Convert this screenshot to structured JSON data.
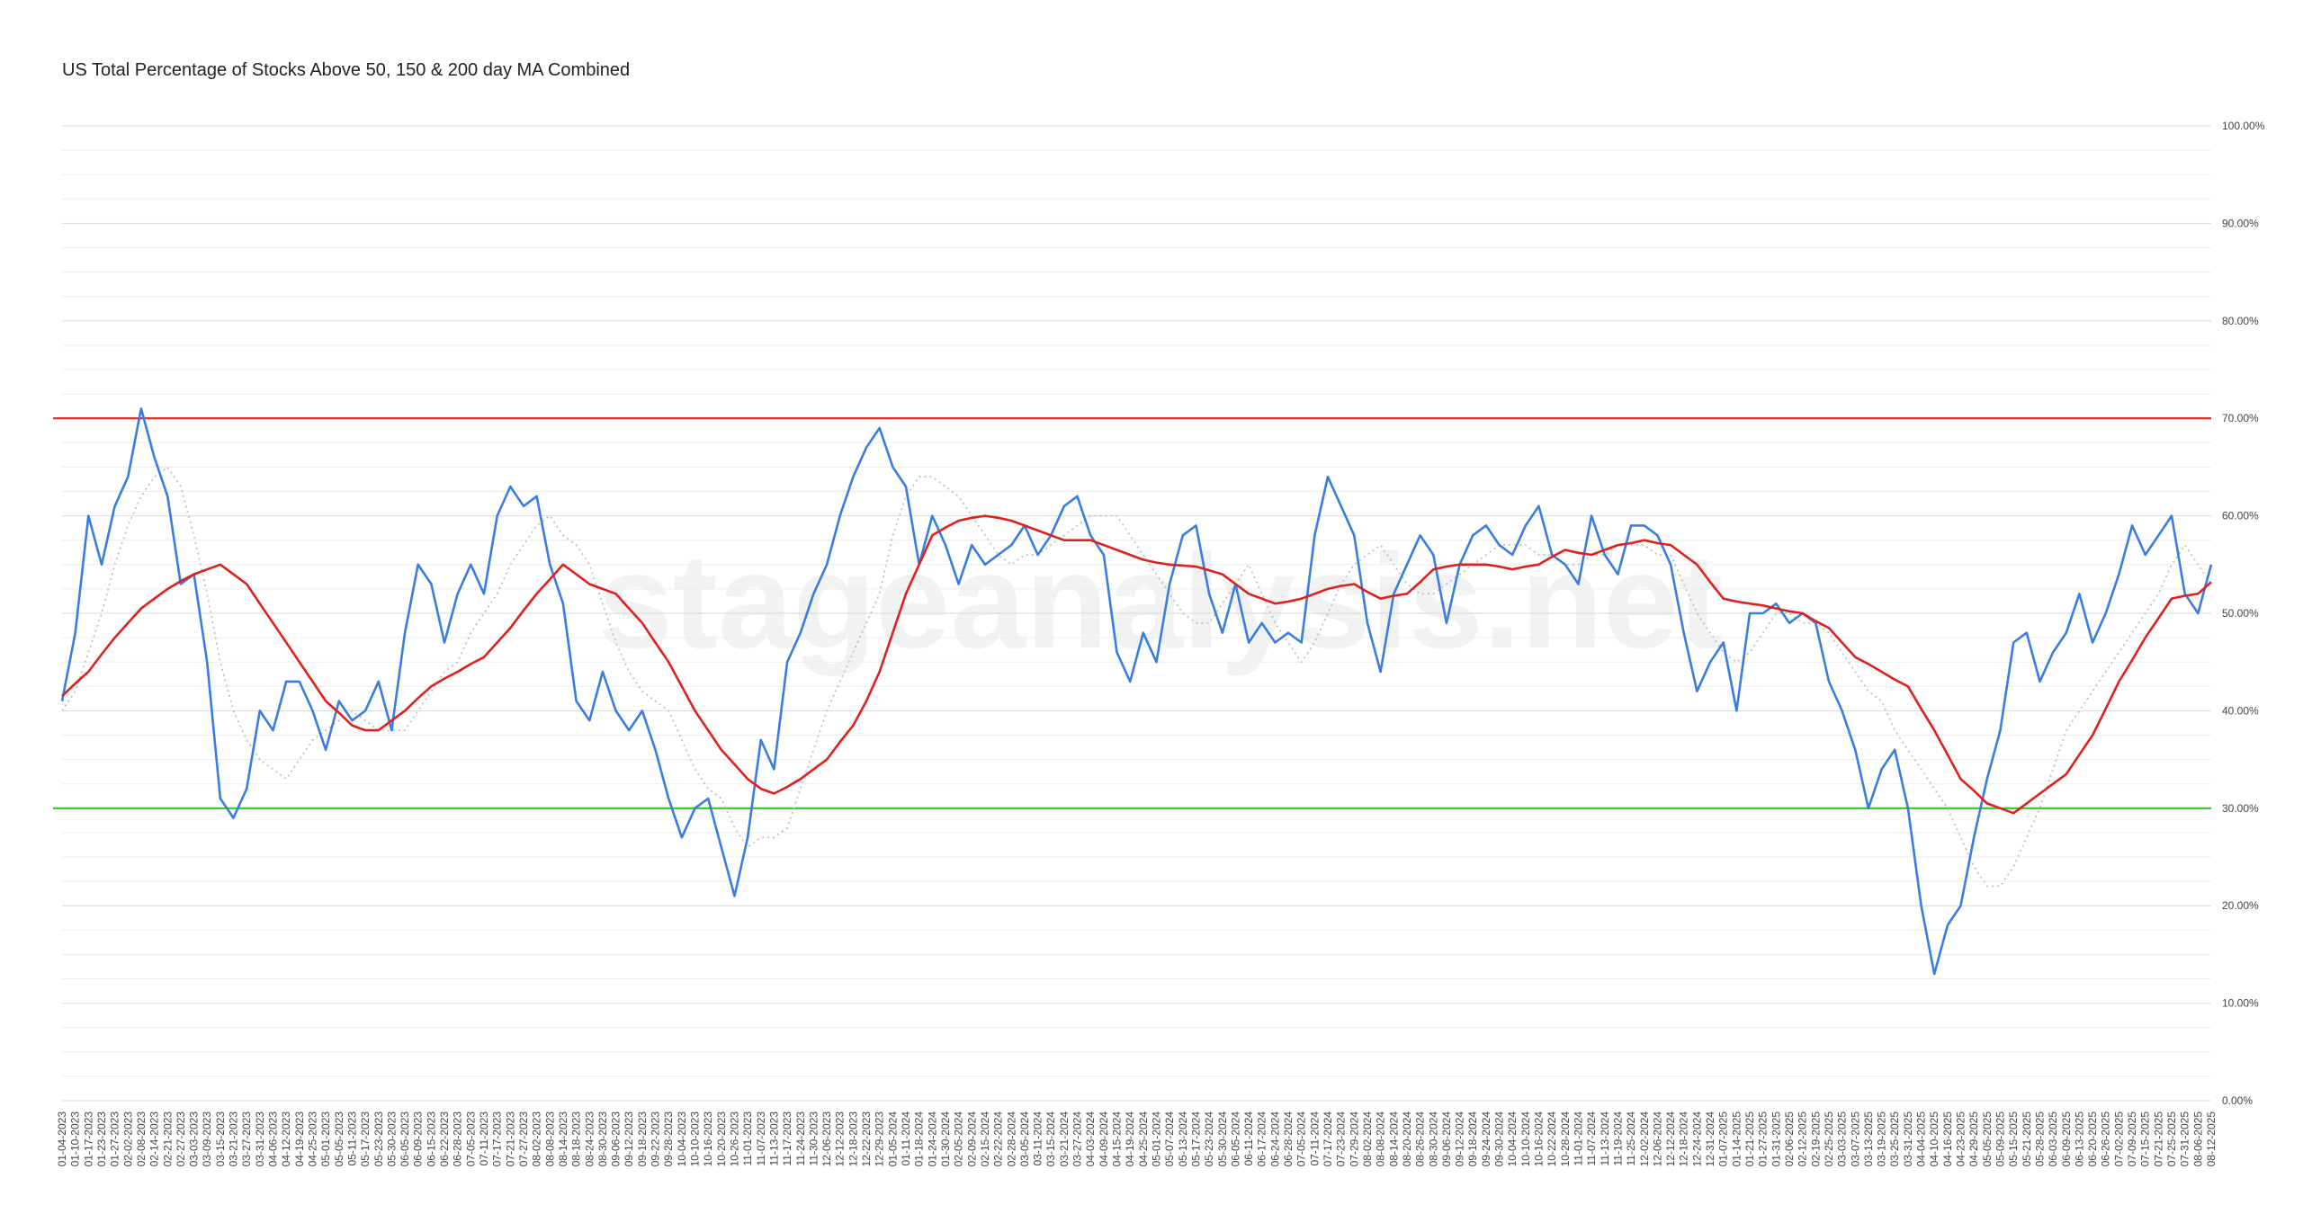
{
  "chart_data": {
    "type": "line",
    "title": "US Total Percentage of Stocks Above 50, 150 & 200 day MA Combined",
    "watermark": "stageanalysis.net",
    "categories": [
      "01-04-2023",
      "01-10-2023",
      "01-17-2023",
      "01-23-2023",
      "01-27-2023",
      "02-02-2023",
      "02-08-2023",
      "02-14-2023",
      "02-21-2023",
      "02-27-2023",
      "03-03-2023",
      "03-09-2023",
      "03-15-2023",
      "03-21-2023",
      "03-27-2023",
      "03-31-2023",
      "04-06-2023",
      "04-12-2023",
      "04-19-2023",
      "04-25-2023",
      "05-01-2023",
      "05-05-2023",
      "05-11-2023",
      "05-17-2023",
      "05-23-2023",
      "05-30-2023",
      "06-05-2023",
      "06-09-2023",
      "06-15-2023",
      "06-22-2023",
      "06-28-2023",
      "07-05-2023",
      "07-11-2023",
      "07-17-2023",
      "07-21-2023",
      "07-27-2023",
      "08-02-2023",
      "08-08-2023",
      "08-14-2023",
      "08-18-2023",
      "08-24-2023",
      "08-30-2023",
      "09-06-2023",
      "09-12-2023",
      "09-18-2023",
      "09-22-2023",
      "09-28-2023",
      "10-04-2023",
      "10-10-2023",
      "10-16-2023",
      "10-20-2023",
      "10-26-2023",
      "11-01-2023",
      "11-07-2023",
      "11-13-2023",
      "11-17-2023",
      "11-24-2023",
      "11-30-2023",
      "12-06-2023",
      "12-12-2023",
      "12-18-2023",
      "12-22-2023",
      "12-29-2023",
      "01-05-2024",
      "01-11-2024",
      "01-18-2024",
      "01-24-2024",
      "01-30-2024",
      "02-05-2024",
      "02-09-2024",
      "02-15-2024",
      "02-22-2024",
      "02-28-2024",
      "03-05-2024",
      "03-11-2024",
      "03-15-2024",
      "03-21-2024",
      "03-27-2024",
      "04-03-2024",
      "04-09-2024",
      "04-15-2024",
      "04-19-2024",
      "04-25-2024",
      "05-01-2024",
      "05-07-2024",
      "05-13-2024",
      "05-17-2024",
      "05-23-2024",
      "05-30-2024",
      "06-05-2024",
      "06-11-2024",
      "06-17-2024",
      "06-24-2024",
      "06-28-2024",
      "07-05-2024",
      "07-11-2024",
      "07-17-2024",
      "07-23-2024",
      "07-29-2024",
      "08-02-2024",
      "08-08-2024",
      "08-14-2024",
      "08-20-2024",
      "08-26-2024",
      "08-30-2024",
      "09-06-2024",
      "09-12-2024",
      "09-18-2024",
      "09-24-2024",
      "09-30-2024",
      "10-04-2024",
      "10-10-2024",
      "10-16-2024",
      "10-22-2024",
      "10-28-2024",
      "11-01-2024",
      "11-07-2024",
      "11-13-2024",
      "11-19-2024",
      "11-25-2024",
      "12-02-2024",
      "12-06-2024",
      "12-12-2024",
      "12-18-2024",
      "12-24-2024",
      "12-31-2024",
      "01-07-2025",
      "01-14-2025",
      "01-21-2025",
      "01-27-2025",
      "01-31-2025",
      "02-06-2025",
      "02-12-2025",
      "02-19-2025",
      "02-25-2025",
      "03-03-2025",
      "03-07-2025",
      "03-13-2025",
      "03-19-2025",
      "03-25-2025",
      "03-31-2025",
      "04-04-2025",
      "04-10-2025",
      "04-16-2025",
      "04-23-2025",
      "04-29-2025",
      "05-05-2025",
      "05-09-2025",
      "05-15-2025",
      "05-21-2025",
      "05-28-2025",
      "06-03-2025",
      "06-09-2025",
      "06-13-2025",
      "06-20-2025",
      "06-26-2025",
      "07-02-2025",
      "07-09-2025",
      "07-15-2025",
      "07-21-2025",
      "07-25-2025",
      "07-31-2025",
      "08-06-2025",
      "08-12-2025"
    ],
    "series": [
      {
        "color": "#c0c0c0",
        "dash": true,
        "values": [
          40,
          42,
          46,
          50,
          55,
          59,
          62,
          64,
          65,
          63,
          58,
          52,
          45,
          40,
          37,
          35,
          34,
          33,
          35,
          37,
          38,
          39,
          40,
          39,
          38,
          38,
          38,
          40,
          42,
          44,
          45,
          48,
          50,
          52,
          55,
          57,
          59,
          60,
          58,
          57,
          55,
          51,
          47,
          44,
          42,
          41,
          40,
          37,
          34,
          32,
          31,
          28,
          26,
          27,
          27,
          28,
          32,
          36,
          40,
          43,
          46,
          49,
          52,
          58,
          62,
          64,
          64,
          63,
          62,
          60,
          58,
          56,
          55,
          56,
          56,
          57,
          58,
          59,
          60,
          60,
          60,
          58,
          56,
          54,
          52,
          50,
          49,
          49,
          51,
          53,
          55,
          52,
          49,
          47,
          45,
          47,
          50,
          53,
          55,
          56,
          57,
          55,
          53,
          52,
          52,
          53,
          54,
          55,
          56,
          57,
          57,
          57,
          56,
          56,
          55,
          55,
          56,
          56,
          57,
          57,
          57,
          56,
          56,
          53,
          50,
          48,
          46,
          45,
          46,
          48,
          50,
          50,
          49,
          49,
          48,
          46,
          44,
          42,
          41,
          38,
          36,
          34,
          32,
          30,
          27,
          24,
          22,
          22,
          24,
          27,
          30,
          34,
          38,
          40,
          42,
          44,
          46,
          48,
          50,
          52,
          55,
          57,
          55,
          53
        ]
      },
      {
        "color": "#3a7de0",
        "values": [
          41,
          48,
          60,
          55,
          61,
          64,
          71,
          66,
          62,
          53,
          54,
          45,
          31,
          29,
          32,
          40,
          38,
          43,
          43,
          40,
          36,
          41,
          39,
          40,
          43,
          38,
          48,
          55,
          53,
          47,
          52,
          55,
          52,
          60,
          63,
          61,
          62,
          55,
          51,
          41,
          39,
          44,
          40,
          38,
          40,
          36,
          31,
          27,
          30,
          31,
          26,
          21,
          27,
          37,
          34,
          45,
          48,
          52,
          55,
          60,
          64,
          67,
          69,
          65,
          63,
          55,
          60,
          57,
          53,
          57,
          55,
          56,
          57,
          59,
          56,
          58,
          61,
          62,
          58,
          56,
          46,
          43,
          48,
          45,
          53,
          58,
          59,
          52,
          48,
          53,
          47,
          49,
          47,
          48,
          47,
          58,
          64,
          61,
          58,
          49,
          44,
          52,
          55,
          58,
          56,
          49,
          55,
          58,
          59,
          57,
          56,
          59,
          61,
          56,
          55,
          53,
          60,
          56,
          54,
          59,
          59,
          58,
          55,
          48,
          42,
          45,
          47,
          40,
          50,
          50,
          51,
          49,
          50,
          49,
          43,
          40,
          36,
          30,
          34,
          36,
          30,
          20,
          13,
          18,
          20,
          27,
          33,
          38,
          47,
          48,
          43,
          46,
          48,
          52,
          47,
          50,
          54,
          59,
          56,
          58,
          60,
          52,
          50,
          55
        ]
      },
      {
        "color": "#e0201c",
        "values": [
          41.5,
          42.8,
          44,
          45.8,
          47.5,
          49,
          50.5,
          51.5,
          52.5,
          53.3,
          54,
          54.5,
          55,
          54,
          53,
          51,
          49,
          47,
          45,
          43,
          41,
          39.8,
          38.5,
          38,
          38,
          39,
          40,
          41.3,
          42.5,
          43.3,
          44,
          44.8,
          45.5,
          47,
          48.5,
          50.3,
          52,
          53.5,
          55,
          54,
          53,
          52.5,
          52,
          50.5,
          49,
          47,
          45,
          42.5,
          40,
          38,
          36,
          34.5,
          33,
          32,
          31.5,
          32.2,
          33,
          34,
          35,
          36.8,
          38.5,
          41,
          44,
          48,
          52,
          55,
          58,
          58.8,
          59.5,
          59.8,
          60,
          59.8,
          59.5,
          59,
          58.5,
          58,
          57.5,
          57.5,
          57.5,
          57,
          56.5,
          56,
          55.5,
          55.2,
          55,
          54.9,
          54.8,
          54.4,
          54,
          53,
          52,
          51.5,
          51,
          51.2,
          51.5,
          52,
          52.5,
          52.8,
          53,
          52.2,
          51.5,
          51.8,
          52,
          53.2,
          54.5,
          54.8,
          55,
          55,
          55,
          54.8,
          54.5,
          54.8,
          55,
          55.8,
          56.5,
          56.2,
          56,
          56.5,
          57,
          57.2,
          57.5,
          57.2,
          57,
          56,
          55,
          53.2,
          51.5,
          51.2,
          51,
          50.8,
          50.5,
          50.2,
          50,
          49.2,
          48.5,
          47,
          45.5,
          44.8,
          44,
          43.2,
          42.5,
          40.2,
          38,
          35.5,
          33,
          31.8,
          30.5,
          30,
          29.5,
          30.5,
          31.5,
          32.5,
          33.5,
          35.5,
          37.5,
          40.2,
          43,
          45.2,
          47.5,
          49.5,
          51.5,
          51.8,
          52,
          53.2
        ]
      }
    ],
    "reference_lines": [
      {
        "value": 70,
        "color": "#e0201c"
      },
      {
        "value": 30,
        "color": "#2ecc1a"
      }
    ],
    "ylim": [
      0,
      100
    ],
    "yticks": [
      {
        "value": 0,
        "label": "0.00%"
      },
      {
        "value": 10,
        "label": "10.00%"
      },
      {
        "value": 20,
        "label": "20.00%"
      },
      {
        "value": 30,
        "label": "30.00%"
      },
      {
        "value": 40,
        "label": "40.00%"
      },
      {
        "value": 50,
        "label": "50.00%"
      },
      {
        "value": 60,
        "label": "60.00%"
      },
      {
        "value": 70,
        "label": "70.00%"
      },
      {
        "value": 80,
        "label": "80.00%"
      },
      {
        "value": 90,
        "label": "90.00%"
      },
      {
        "value": 100,
        "label": "100.00%"
      }
    ],
    "grid": true
  }
}
